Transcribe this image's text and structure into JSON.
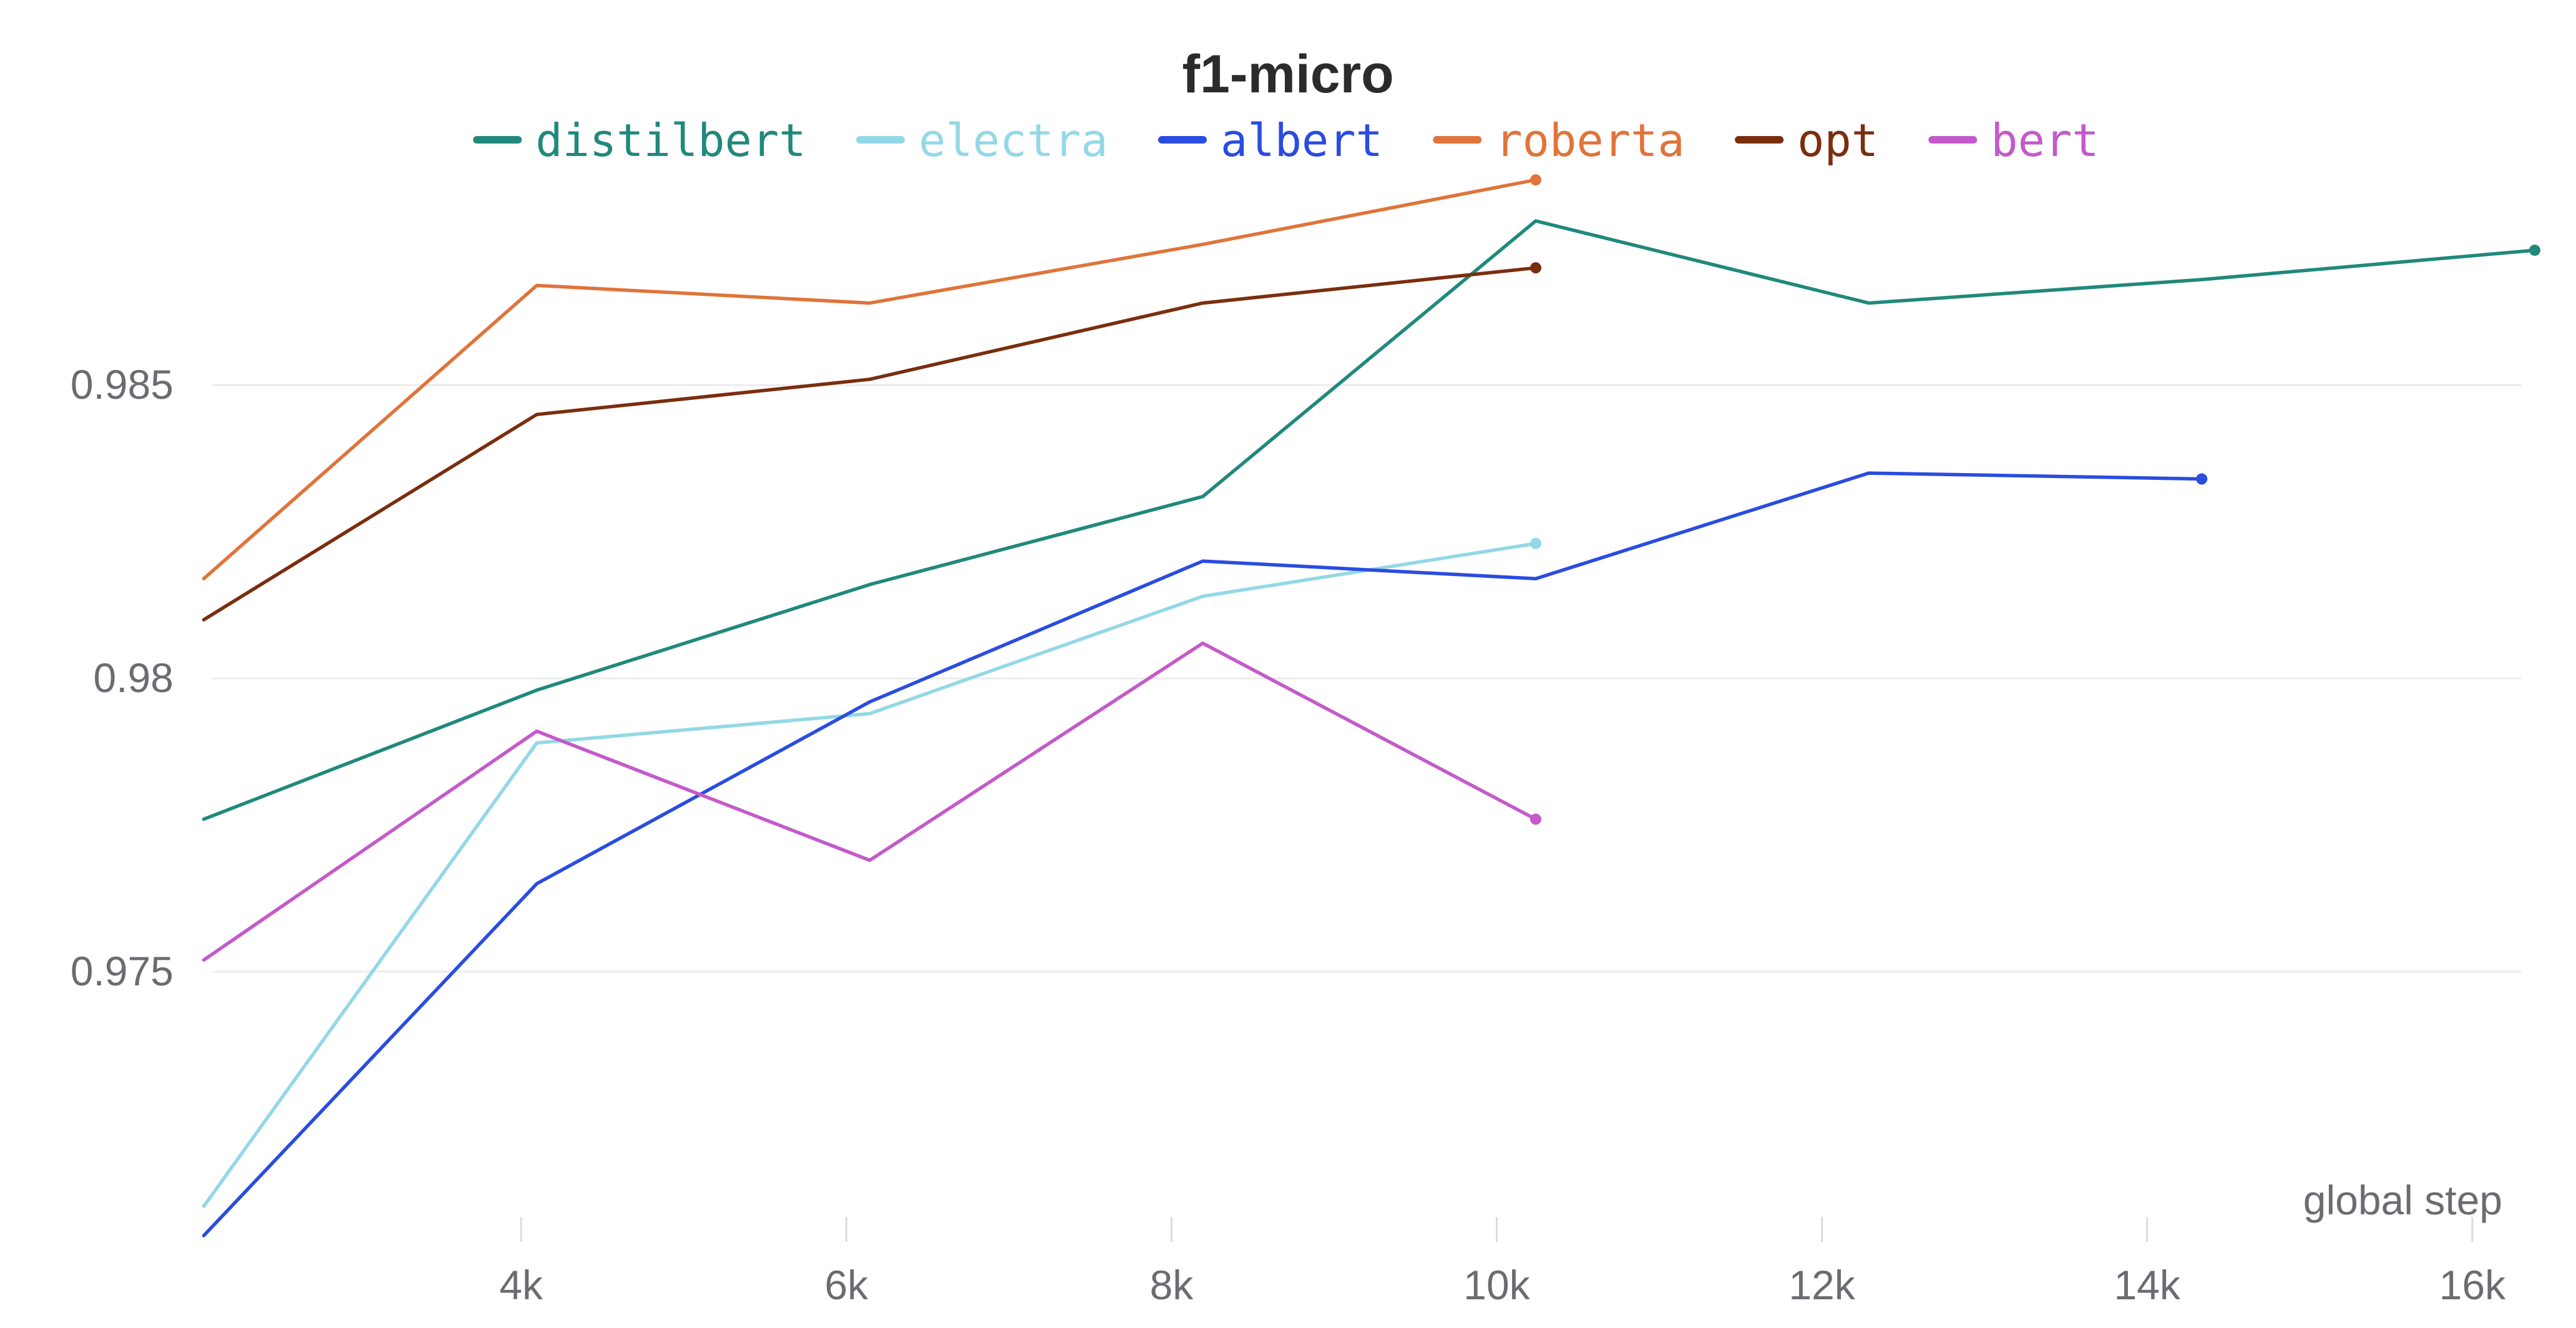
{
  "chart_data": {
    "type": "line",
    "title": "f1-micro",
    "xlabel": "global step",
    "ylabel": "",
    "xlim": [
      2100,
      16300
    ],
    "ylim": [
      0.9705,
      0.9888
    ],
    "x_ticks": [
      4000,
      6000,
      8000,
      10000,
      12000,
      14000,
      16000
    ],
    "x_tick_labels": [
      "4k",
      "6k",
      "8k",
      "10k",
      "12k",
      "14k",
      "16k"
    ],
    "y_ticks": [
      0.975,
      0.98,
      0.985
    ],
    "y_tick_labels": [
      "0.975",
      "0.98",
      "0.985"
    ],
    "grid": true,
    "legend_position": "top",
    "series": [
      {
        "name": "distilbert",
        "color": "#20897b",
        "x": [
          2048,
          4096,
          6144,
          8192,
          10240,
          12288,
          14336,
          16384
        ],
        "y": [
          0.9776,
          0.9798,
          0.9816,
          0.9831,
          0.9878,
          0.9864,
          0.9868,
          0.9873
        ]
      },
      {
        "name": "electra",
        "color": "#93d8e6",
        "x": [
          2048,
          4096,
          6144,
          8192,
          10240
        ],
        "y": [
          0.971,
          0.9789,
          0.9794,
          0.9814,
          0.9823
        ]
      },
      {
        "name": "albert",
        "color": "#2a4ce0",
        "x": [
          2048,
          4096,
          6144,
          8192,
          10240,
          12288,
          14336
        ],
        "y": [
          0.9705,
          0.9765,
          0.9796,
          0.982,
          0.9817,
          0.9835,
          0.9834
        ]
      },
      {
        "name": "roberta",
        "color": "#e0743a",
        "x": [
          2048,
          4096,
          6144,
          8192,
          10240
        ],
        "y": [
          0.9817,
          0.9867,
          0.9864,
          0.9874,
          0.9885
        ]
      },
      {
        "name": "opt",
        "color": "#7a2e0e",
        "x": [
          2048,
          4096,
          6144,
          8192,
          10240
        ],
        "y": [
          0.981,
          0.9845,
          0.9851,
          0.9864,
          0.987
        ]
      },
      {
        "name": "bert",
        "color": "#c45ac9",
        "x": [
          2048,
          4096,
          6144,
          8192,
          10240
        ],
        "y": [
          0.9752,
          0.9791,
          0.9769,
          0.9806,
          0.9776
        ]
      }
    ]
  }
}
